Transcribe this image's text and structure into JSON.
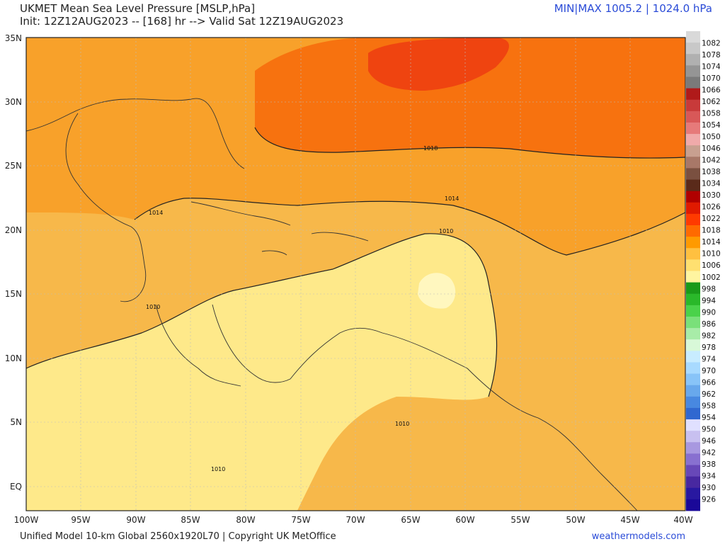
{
  "header": {
    "title": "UKMET Mean Sea Level Pressure [MSLP,hPa]",
    "init_line": "Init: 12Z12AUG2023 -- [168] hr --> Valid Sat 12Z19AUG2023",
    "minmax": "MIN|MAX 1005.2 | 1024.0 hPa"
  },
  "footer": {
    "model": "Unified Model 10-km Global 2560x1920L70 | Copyright UK MetOffice",
    "site": "weathermodels.com"
  },
  "map": {
    "lat_labels": [
      "35N",
      "30N",
      "25N",
      "20N",
      "15N",
      "10N",
      "5N",
      "EQ"
    ],
    "lon_labels": [
      "100W",
      "95W",
      "90W",
      "85W",
      "80W",
      "75W",
      "70W",
      "65W",
      "60W",
      "55W",
      "50W",
      "45W",
      "40W"
    ],
    "isobar_labels": [
      "1018",
      "1014",
      "1010",
      "1014",
      "1010",
      "1010",
      "1010"
    ]
  },
  "colorbar": {
    "labels": [
      "1082",
      "1078",
      "1074",
      "1070",
      "1066",
      "1062",
      "1058",
      "1054",
      "1050",
      "1046",
      "1042",
      "1038",
      "1034",
      "1030",
      "1026",
      "1022",
      "1018",
      "1014",
      "1010",
      "1006",
      "1002",
      "998",
      "994",
      "990",
      "986",
      "982",
      "978",
      "974",
      "970",
      "966",
      "962",
      "958",
      "954",
      "950",
      "946",
      "942",
      "938",
      "934",
      "930",
      "926"
    ],
    "colors": [
      "#d9d9d9",
      "#c8c8c8",
      "#b0b0b0",
      "#959595",
      "#7a7a7a",
      "#b01a1a",
      "#c83a3a",
      "#d85858",
      "#e67a7a",
      "#f0aaaa",
      "#c8a090",
      "#a87868",
      "#7a5040",
      "#5a2a1a",
      "#b00000",
      "#e01a00",
      "#ff3a00",
      "#ff6a00",
      "#ff9a00",
      "#ffc040",
      "#ffe070",
      "#fff5a0",
      "#1a9a1a",
      "#2ab82a",
      "#4ad24a",
      "#7ae07a",
      "#a8eca8",
      "#d8f8d8",
      "#c8ecff",
      "#a8daff",
      "#88c4f8",
      "#68a8ec",
      "#4888e0",
      "#3068d0",
      "#e0e0ff",
      "#c8c0f0",
      "#a898e0",
      "#8870d0",
      "#6848b8",
      "#4828a0",
      "#2818a0",
      "#1a0898"
    ]
  }
}
